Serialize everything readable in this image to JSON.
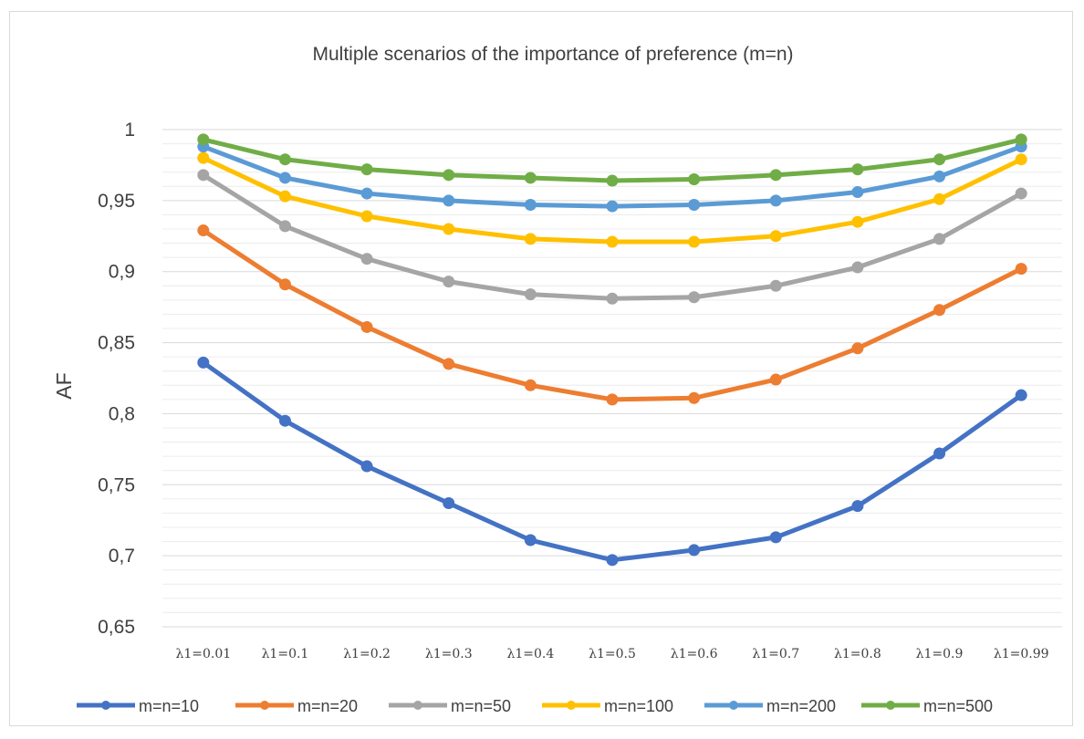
{
  "chart_data": {
    "type": "line",
    "title": "Multiple scenarios of the importance of preference (m=n)",
    "xlabel": "",
    "ylabel": "AF",
    "ylim": [
      0.65,
      1.0
    ],
    "yticks": [
      "1",
      "0,95",
      "0,9",
      "0,85",
      "0,8",
      "0,75",
      "0,7",
      "0,65"
    ],
    "ytick_values": [
      1.0,
      0.95,
      0.9,
      0.85,
      0.8,
      0.75,
      0.7,
      0.65
    ],
    "grid": true,
    "legend_position": "bottom",
    "categories": [
      "λ1=0.01",
      "λ1=0.1",
      "λ1=0.2",
      "λ1=0.3",
      "λ1=0.4",
      "λ1=0.5",
      "λ1=0.6",
      "λ1=0.7",
      "λ1=0.8",
      "λ1=0.9",
      "λ1=0.99"
    ],
    "series": [
      {
        "name": "m=n=10",
        "color": "#4472c4",
        "values": [
          0.836,
          0.795,
          0.763,
          0.737,
          0.711,
          0.697,
          0.704,
          0.713,
          0.735,
          0.772,
          0.813
        ]
      },
      {
        "name": "m=n=20",
        "color": "#ed7d31",
        "values": [
          0.929,
          0.891,
          0.861,
          0.835,
          0.82,
          0.81,
          0.811,
          0.824,
          0.846,
          0.873,
          0.902
        ]
      },
      {
        "name": "m=n=50",
        "color": "#a5a5a5",
        "values": [
          0.968,
          0.932,
          0.909,
          0.893,
          0.884,
          0.881,
          0.882,
          0.89,
          0.903,
          0.923,
          0.955
        ]
      },
      {
        "name": "m=n=100",
        "color": "#ffc000",
        "values": [
          0.98,
          0.953,
          0.939,
          0.93,
          0.923,
          0.921,
          0.921,
          0.925,
          0.935,
          0.951,
          0.979
        ]
      },
      {
        "name": "m=n=200",
        "color": "#5b9bd5",
        "values": [
          0.988,
          0.966,
          0.955,
          0.95,
          0.947,
          0.946,
          0.947,
          0.95,
          0.956,
          0.967,
          0.988
        ]
      },
      {
        "name": "m=n=500",
        "color": "#70ad47",
        "values": [
          0.993,
          0.979,
          0.972,
          0.968,
          0.966,
          0.964,
          0.965,
          0.968,
          0.972,
          0.979,
          0.993
        ]
      }
    ]
  }
}
